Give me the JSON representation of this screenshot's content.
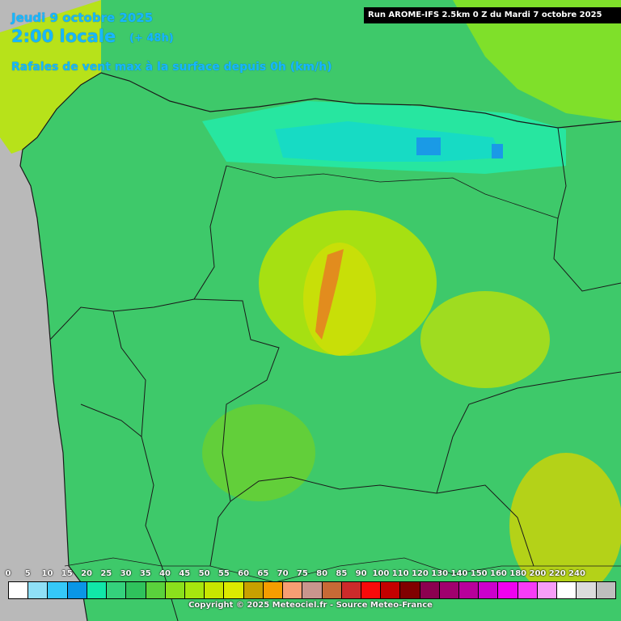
{
  "header": {
    "date": "Jeudi 9 octobre 2025",
    "time": "2:00 locale",
    "lead": "(+ 48h)",
    "parameter": "Rafales de vent max à la surface depuis 0h (km/h)"
  },
  "run_info": "Run AROME-IFS 2.5km 0 Z du Mardi 7 octobre 2025",
  "legend": {
    "ticks": [
      "0",
      "5",
      "10",
      "15",
      "20",
      "25",
      "30",
      "35",
      "40",
      "45",
      "50",
      "55",
      "60",
      "65",
      "70",
      "75",
      "80",
      "85",
      "90",
      "100",
      "110",
      "120",
      "130",
      "140",
      "150",
      "160",
      "180",
      "200",
      "220",
      "240"
    ],
    "colors": [
      "#ffffff",
      "#8fe0f7",
      "#35c8f8",
      "#0a96e6",
      "#10e8a8",
      "#34d27c",
      "#2fc25c",
      "#5ad23c",
      "#8be01c",
      "#a6e60e",
      "#c8e600",
      "#dcea00",
      "#c8a000",
      "#f59d00",
      "#f79e73",
      "#c9958d",
      "#c76a36",
      "#cc2b2b",
      "#f80a0a",
      "#c40000",
      "#800000",
      "#8c0050",
      "#a0006e",
      "#b8009b",
      "#cc00cc",
      "#f000f0",
      "#f73cf7",
      "#f79ef7",
      "#ffffff",
      "#dcdcdc",
      "#bebebe"
    ]
  },
  "copyright": "Copyright © 2025 Meteociel.fr - Source Meteo-France",
  "map": {
    "region": "Galicia / north-west Iberia",
    "colors": {
      "sea": "#b9b9b9",
      "border": "#1a1a1a"
    }
  }
}
